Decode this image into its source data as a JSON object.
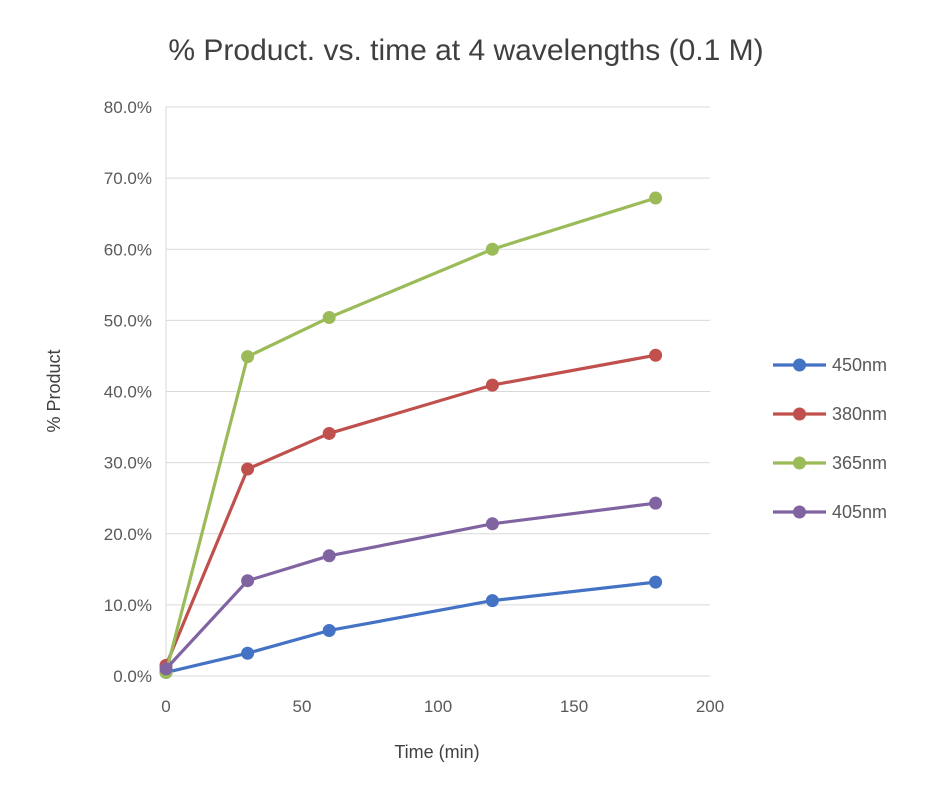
{
  "chart_data": {
    "type": "line",
    "title": "% Product. vs. time at 4 wavelengths (0.1 M)",
    "xlabel": "Time (min)",
    "ylabel": "% Product",
    "xlim": [
      0,
      200
    ],
    "ylim": [
      0,
      0.8
    ],
    "xticks": [
      0,
      50,
      100,
      150,
      200
    ],
    "xtick_labels": [
      "0",
      "50",
      "100",
      "150",
      "200"
    ],
    "yticks": [
      0,
      0.1,
      0.2,
      0.3,
      0.4,
      0.5,
      0.6,
      0.7,
      0.8
    ],
    "ytick_labels": [
      "0.0%",
      "10.0%",
      "20.0%",
      "30.0%",
      "40.0%",
      "50.0%",
      "60.0%",
      "70.0%",
      "80.0%"
    ],
    "grid": true,
    "legend_position": "right",
    "x": [
      0,
      30,
      60,
      120,
      180
    ],
    "series": [
      {
        "name": "450nm",
        "color": "#4472c4",
        "values": [
          0.005,
          0.032,
          0.064,
          0.106,
          0.132
        ]
      },
      {
        "name": "380nm",
        "color": "#c0504d",
        "values": [
          0.015,
          0.291,
          0.341,
          0.409,
          0.451
        ]
      },
      {
        "name": "365nm",
        "color": "#9bbb59",
        "values": [
          0.005,
          0.449,
          0.504,
          0.6,
          0.672
        ]
      },
      {
        "name": "405nm",
        "color": "#8064a2",
        "values": [
          0.01,
          0.134,
          0.169,
          0.214,
          0.243
        ]
      }
    ]
  }
}
